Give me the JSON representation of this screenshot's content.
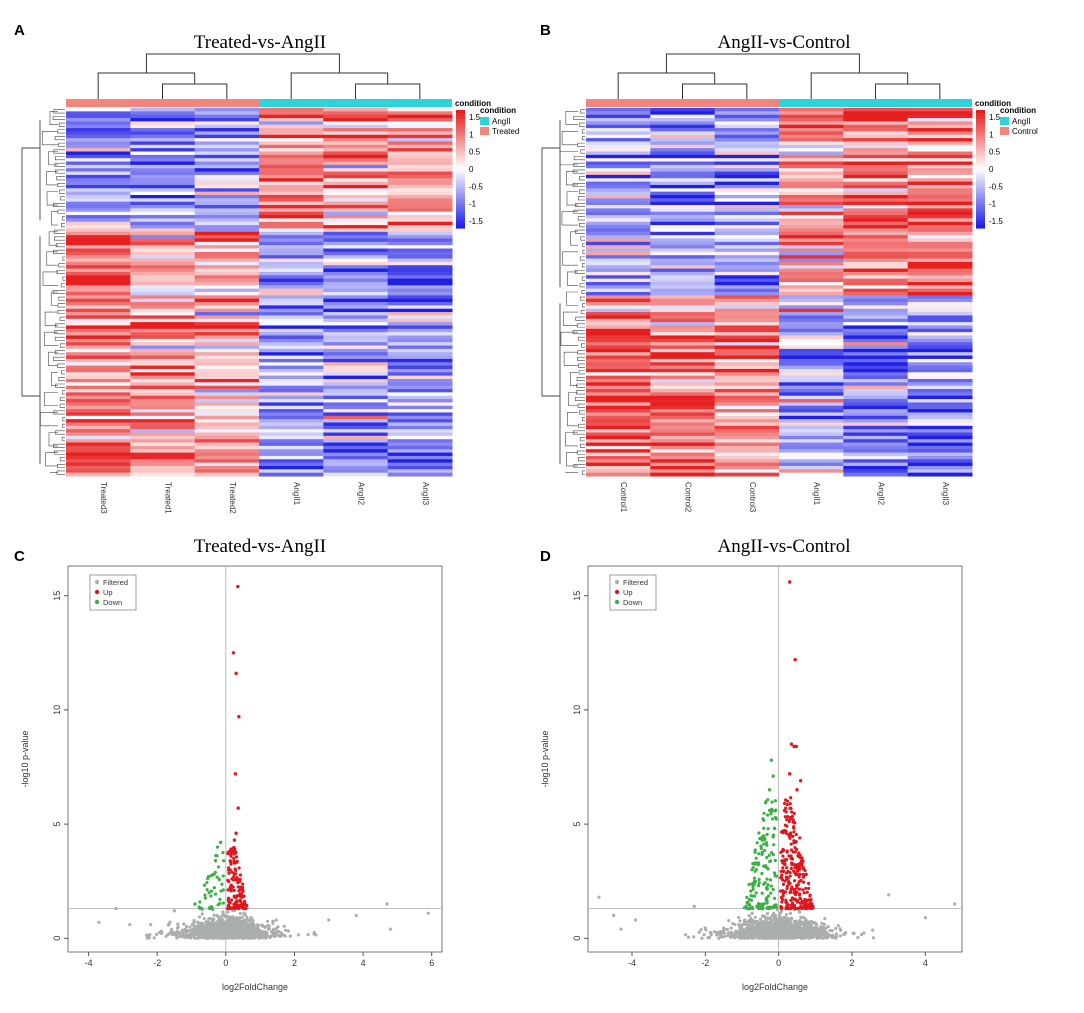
{
  "panels": {
    "a": {
      "letter": "A",
      "title": "Treated-vs-AngII"
    },
    "b": {
      "letter": "B",
      "title": "AngII-vs-Control"
    },
    "c": {
      "letter": "C",
      "title": "Treated-vs-AngII"
    },
    "d": {
      "letter": "D",
      "title": "AngII-vs-Control"
    }
  },
  "colors": {
    "heat_low": "#1f1fe6",
    "heat_mid": "#ffffff",
    "heat_high": "#e61e1e",
    "group_teal": "#2dd3d9",
    "group_salmon": "#f2857c",
    "volcano_filtered": "#aaaeac",
    "volcano_up": "#e0161c",
    "volcano_down": "#3cb043"
  },
  "chart_data": [
    {
      "type": "heatmap",
      "panel": "A",
      "title": "Treated-vs-AngII",
      "samples": [
        "Treated3",
        "Treated1",
        "Treated2",
        "AngII1",
        "AngII2",
        "AngII3"
      ],
      "sample_groups": [
        "Treated",
        "Treated",
        "Treated",
        "AngII",
        "AngII",
        "AngII"
      ],
      "annotation_title": "condition",
      "legend": {
        "title": "condition",
        "entries": [
          {
            "label": "AngII",
            "color": "#2dd3d9"
          },
          {
            "label": "Treated",
            "color": "#f2857c"
          }
        ]
      },
      "colorbar_ticks": [
        "1.5",
        "1",
        "0.5",
        "0",
        "-0.5",
        "-1",
        "-1.5"
      ],
      "value_range": [
        -1.7,
        1.7
      ],
      "row_clusters": [
        {
          "fraction": 0.33,
          "means": [
            -0.8,
            -0.9,
            -0.7,
            0.9,
            0.8,
            0.7
          ]
        },
        {
          "fraction": 0.67,
          "means": [
            1.0,
            0.7,
            0.8,
            -0.7,
            -0.9,
            -0.9
          ]
        }
      ],
      "row_count": 110
    },
    {
      "type": "heatmap",
      "panel": "B",
      "title": "AngII-vs-Control",
      "samples": [
        "Control1",
        "Control2",
        "Control3",
        "AngII1",
        "AngII2",
        "AngII3"
      ],
      "sample_groups": [
        "Control",
        "Control",
        "Control",
        "AngII",
        "AngII",
        "AngII"
      ],
      "annotation_title": "condition",
      "legend": {
        "title": "condition",
        "entries": [
          {
            "label": "AngII",
            "color": "#2dd3d9"
          },
          {
            "label": "Control",
            "color": "#f2857c"
          }
        ]
      },
      "colorbar_ticks": [
        "1.5",
        "1",
        "0.5",
        "0",
        "-0.5",
        "-1",
        "-1.5"
      ],
      "value_range": [
        -1.7,
        1.7
      ],
      "row_clusters": [
        {
          "fraction": 0.51,
          "means": [
            -0.6,
            -0.8,
            -0.7,
            0.6,
            1.0,
            1.0
          ]
        },
        {
          "fraction": 0.49,
          "means": [
            1.0,
            1.0,
            0.7,
            -0.5,
            -0.9,
            -0.9
          ]
        }
      ],
      "row_count": 110
    },
    {
      "type": "scatter",
      "panel": "C",
      "title": "Treated-vs-AngII",
      "xlabel": "log2FoldChange",
      "ylabel": "-log10 p-value",
      "xlim": [
        -4.6,
        6.3
      ],
      "ylim": [
        -0.6,
        16.3
      ],
      "xticks": [
        -4,
        -2,
        0,
        2,
        4,
        6
      ],
      "yticks": [
        0,
        5,
        10,
        15
      ],
      "threshold_y": 1.3,
      "vline_x": 0,
      "legend": [
        {
          "label": "Filtered",
          "color": "#aaaeac"
        },
        {
          "label": "Up",
          "color": "#e0161c"
        },
        {
          "label": "Down",
          "color": "#3cb043"
        }
      ],
      "up_points": [
        [
          0.35,
          15.4
        ],
        [
          0.22,
          12.5
        ],
        [
          0.3,
          11.6
        ],
        [
          0.38,
          9.7
        ],
        [
          0.28,
          7.2
        ],
        [
          0.36,
          5.7
        ],
        [
          0.3,
          4.6
        ],
        [
          0.25,
          4.3
        ]
      ],
      "down_points": [
        [
          -0.15,
          4.2
        ],
        [
          -0.3,
          3.4
        ],
        [
          -0.5,
          2.7
        ],
        [
          -0.9,
          1.5
        ]
      ],
      "filtered_extremes": [
        [
          -3.7,
          0.7
        ],
        [
          -3.2,
          1.3
        ],
        [
          -2.8,
          0.6
        ],
        [
          3.0,
          0.8
        ],
        [
          3.8,
          1.0
        ],
        [
          4.7,
          1.5
        ],
        [
          4.8,
          0.4
        ],
        [
          5.9,
          1.1
        ],
        [
          -1.5,
          1.2
        ]
      ],
      "sig_region": {
        "up_xmax": 0.6,
        "down_xmin": -0.8,
        "ymax": 4.0,
        "up_count": 130,
        "down_count": 40
      },
      "filtered_count": 1400,
      "filtered_spread": 1.1
    },
    {
      "type": "scatter",
      "panel": "D",
      "title": "AngII-vs-Control",
      "xlabel": "log2FoldChange",
      "ylabel": "-log10 p-value",
      "xlim": [
        -5.2,
        5.0
      ],
      "ylim": [
        -0.6,
        16.3
      ],
      "xticks": [
        -4,
        -2,
        0,
        2,
        4
      ],
      "yticks": [
        0,
        5,
        10,
        15
      ],
      "threshold_y": 1.3,
      "vline_x": 0,
      "legend": [
        {
          "label": "Filtered",
          "color": "#aaaeac"
        },
        {
          "label": "Up",
          "color": "#e0161c"
        },
        {
          "label": "Down",
          "color": "#3cb043"
        }
      ],
      "up_points": [
        [
          0.3,
          15.6
        ],
        [
          0.45,
          12.2
        ],
        [
          0.35,
          8.5
        ],
        [
          0.42,
          8.4
        ],
        [
          0.48,
          8.4
        ],
        [
          0.3,
          7.2
        ],
        [
          0.6,
          6.9
        ],
        [
          0.5,
          6.5
        ]
      ],
      "down_points": [
        [
          -0.2,
          7.8
        ],
        [
          -0.15,
          7.1
        ],
        [
          -0.25,
          6.5
        ],
        [
          -0.45,
          4.3
        ],
        [
          -0.55,
          3.3
        ]
      ],
      "filtered_extremes": [
        [
          -4.9,
          1.8
        ],
        [
          -4.5,
          1.0
        ],
        [
          -4.3,
          0.4
        ],
        [
          -3.9,
          0.8
        ],
        [
          3.0,
          1.9
        ],
        [
          4.0,
          0.9
        ],
        [
          4.8,
          1.5
        ],
        [
          -2.3,
          1.4
        ]
      ],
      "sig_region": {
        "up_xmax": 0.9,
        "down_xmin": -0.9,
        "ymax": 6.2,
        "up_count": 260,
        "down_count": 160
      },
      "filtered_count": 1500,
      "filtered_spread": 1.15
    }
  ]
}
